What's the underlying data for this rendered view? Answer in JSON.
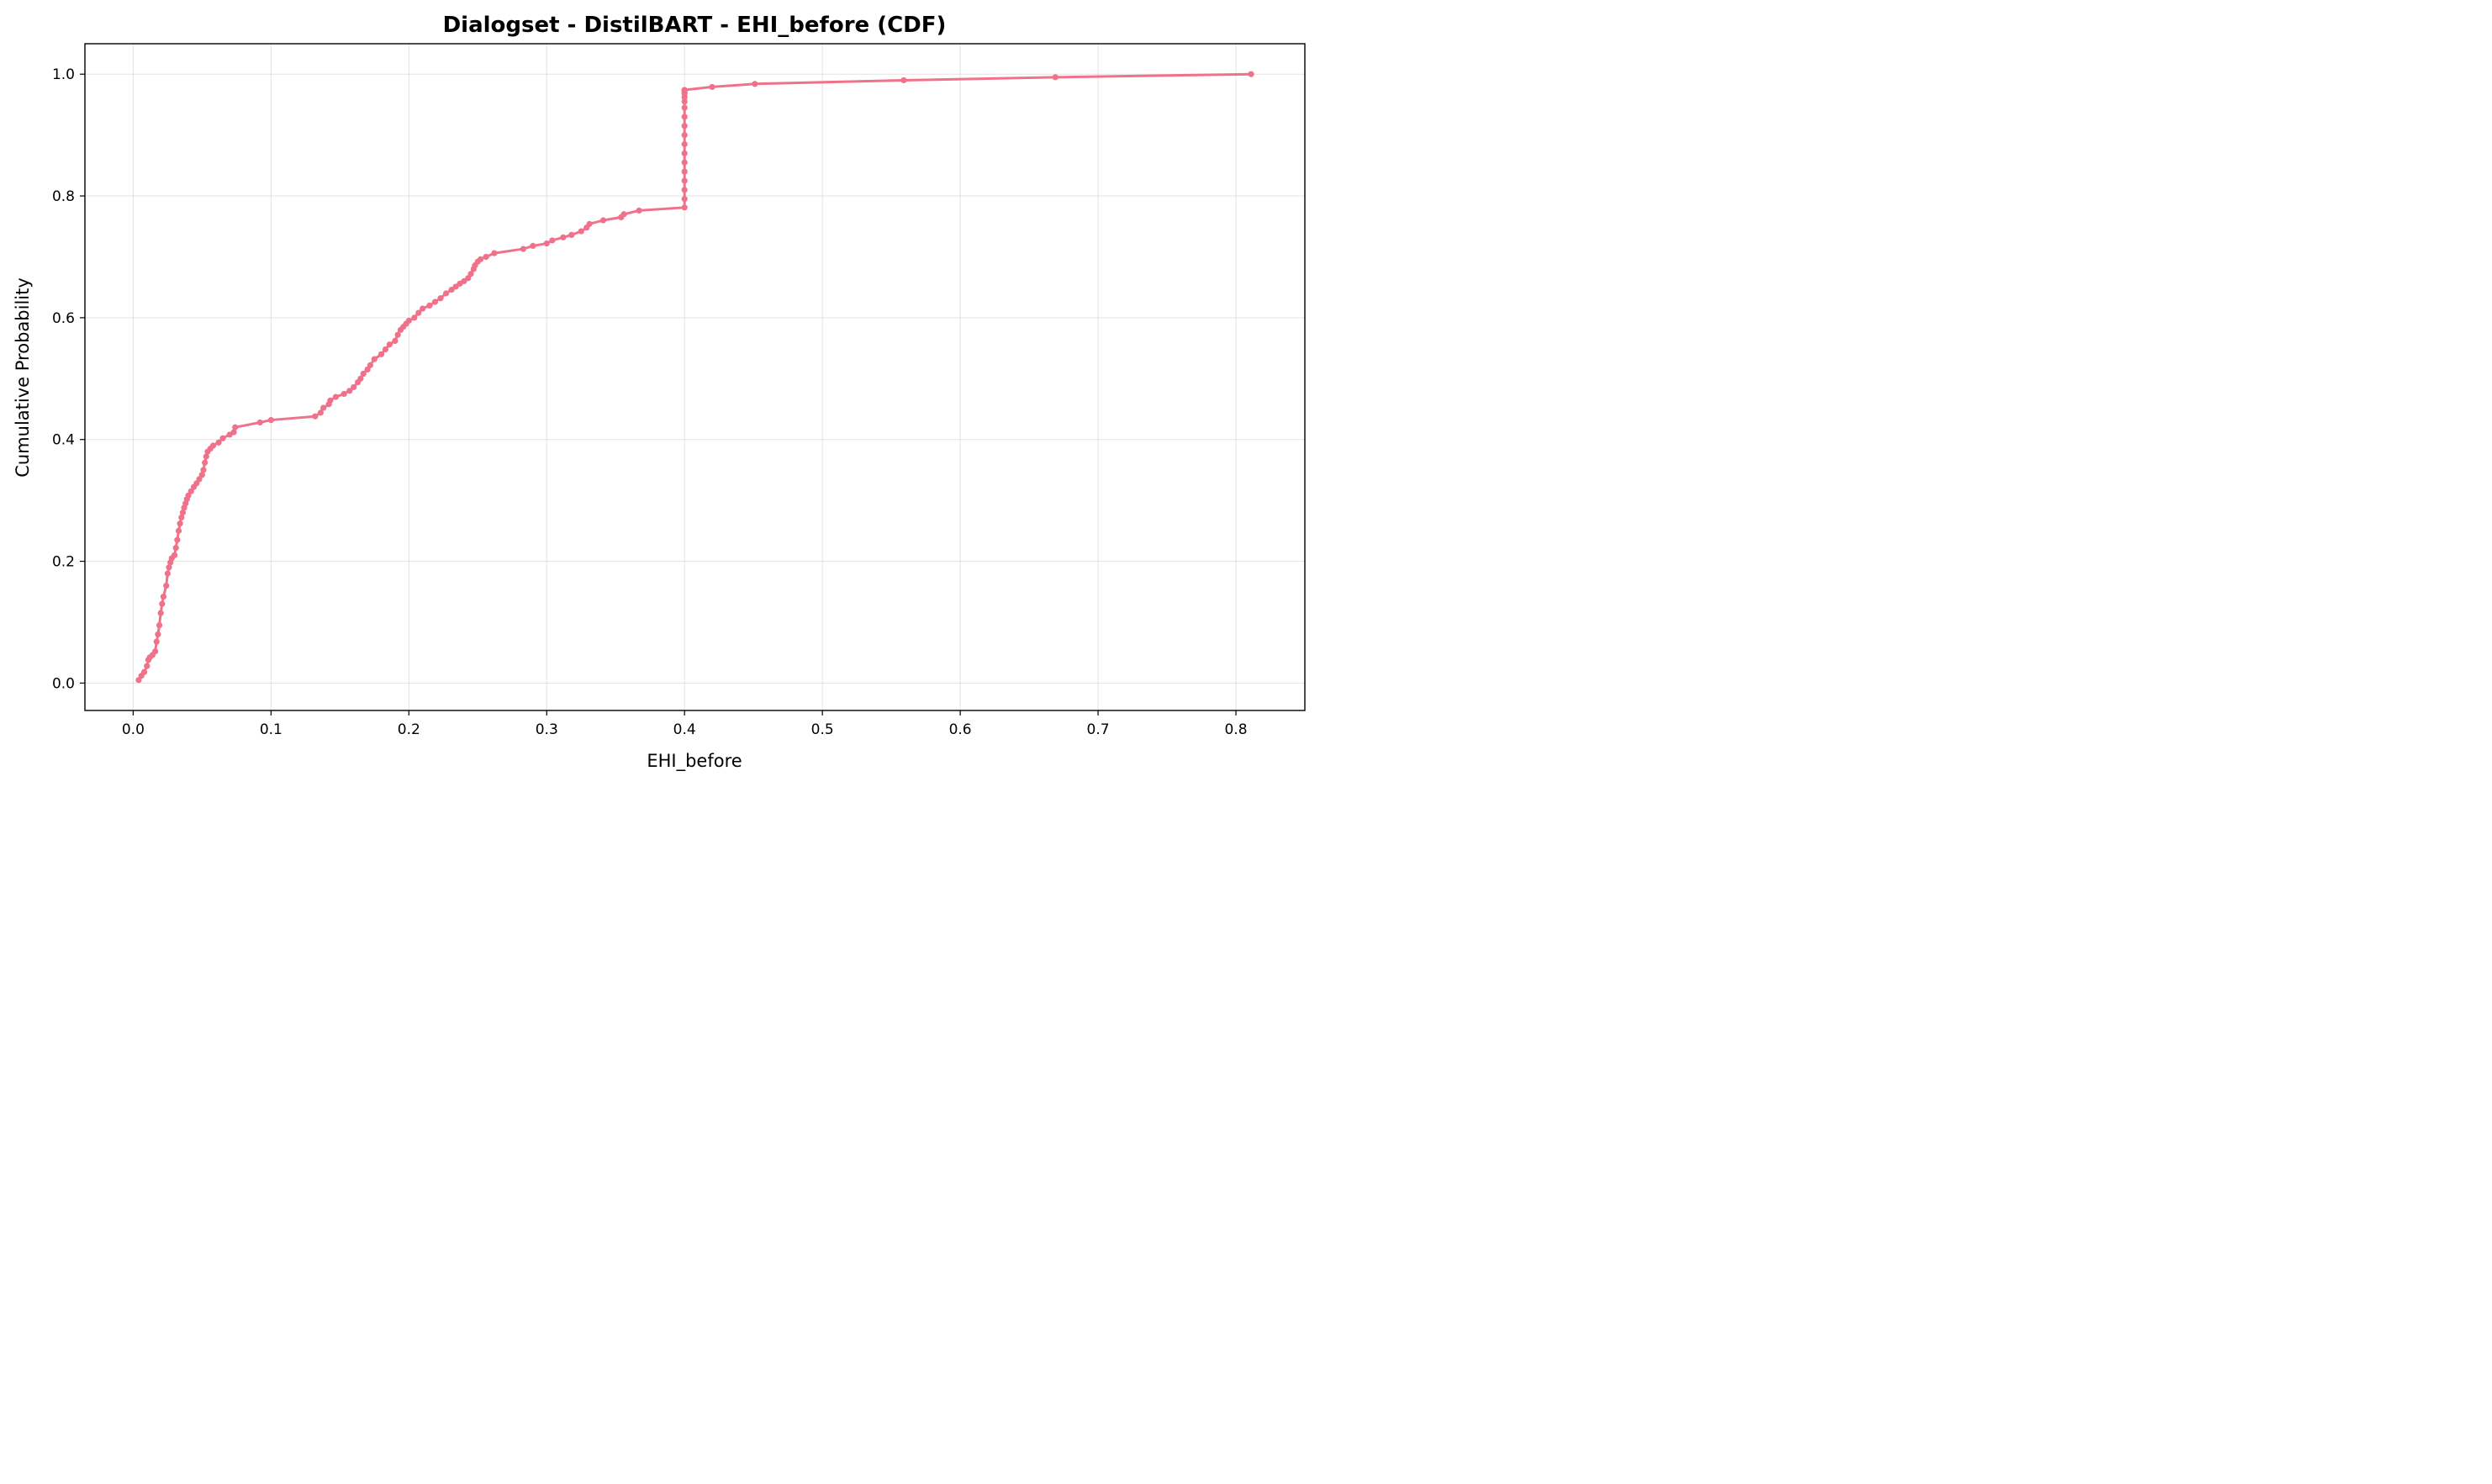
{
  "chart_data": {
    "type": "line",
    "title": "Dialogset - DistilBART - EHI_before (CDF)",
    "xlabel": "EHI_before",
    "ylabel": "Cumulative Probability",
    "xlim": [
      -0.035,
      0.85
    ],
    "ylim": [
      -0.045,
      1.05
    ],
    "xticks": [
      0.0,
      0.1,
      0.2,
      0.3,
      0.4,
      0.5,
      0.6,
      0.7,
      0.8
    ],
    "xtick_labels": [
      "0.0",
      "0.1",
      "0.2",
      "0.3",
      "0.4",
      "0.5",
      "0.6",
      "0.7",
      "0.8"
    ],
    "yticks": [
      0.0,
      0.2,
      0.4,
      0.6,
      0.8,
      1.0
    ],
    "ytick_labels": [
      "0.0",
      "0.2",
      "0.4",
      "0.6",
      "0.8",
      "1.0"
    ],
    "grid": true,
    "color": "#f0728a",
    "series": [
      {
        "name": "",
        "x": [
          0.004,
          0.006,
          0.008,
          0.01,
          0.011,
          0.012,
          0.014,
          0.016,
          0.017,
          0.018,
          0.019,
          0.02,
          0.021,
          0.022,
          0.024,
          0.025,
          0.026,
          0.027,
          0.028,
          0.03,
          0.031,
          0.032,
          0.033,
          0.034,
          0.035,
          0.036,
          0.037,
          0.038,
          0.039,
          0.04,
          0.042,
          0.044,
          0.046,
          0.048,
          0.05,
          0.051,
          0.052,
          0.053,
          0.054,
          0.056,
          0.058,
          0.062,
          0.065,
          0.07,
          0.073,
          0.074,
          0.092,
          0.1,
          0.132,
          0.136,
          0.138,
          0.142,
          0.143,
          0.147,
          0.153,
          0.157,
          0.16,
          0.163,
          0.165,
          0.167,
          0.17,
          0.172,
          0.175,
          0.18,
          0.183,
          0.186,
          0.19,
          0.192,
          0.194,
          0.196,
          0.198,
          0.2,
          0.204,
          0.207,
          0.21,
          0.215,
          0.219,
          0.223,
          0.227,
          0.231,
          0.234,
          0.237,
          0.24,
          0.243,
          0.245,
          0.247,
          0.248,
          0.25,
          0.252,
          0.256,
          0.262,
          0.283,
          0.29,
          0.3,
          0.304,
          0.312,
          0.318,
          0.325,
          0.329,
          0.331,
          0.341,
          0.354,
          0.356,
          0.367,
          0.4,
          0.4,
          0.4,
          0.4,
          0.4,
          0.4,
          0.4,
          0.4,
          0.4,
          0.4,
          0.4,
          0.4,
          0.4,
          0.4,
          0.4,
          0.4,
          0.4,
          0.4,
          0.4,
          0.4,
          0.42,
          0.451,
          0.559,
          0.669,
          0.811
        ],
        "y": [
          0.005,
          0.012,
          0.018,
          0.028,
          0.038,
          0.042,
          0.046,
          0.052,
          0.068,
          0.08,
          0.095,
          0.115,
          0.13,
          0.142,
          0.16,
          0.18,
          0.19,
          0.198,
          0.205,
          0.21,
          0.222,
          0.235,
          0.25,
          0.262,
          0.272,
          0.28,
          0.288,
          0.295,
          0.302,
          0.308,
          0.315,
          0.322,
          0.328,
          0.335,
          0.342,
          0.35,
          0.362,
          0.372,
          0.38,
          0.385,
          0.39,
          0.395,
          0.402,
          0.408,
          0.412,
          0.42,
          0.428,
          0.432,
          0.438,
          0.444,
          0.452,
          0.458,
          0.464,
          0.47,
          0.475,
          0.48,
          0.486,
          0.494,
          0.5,
          0.508,
          0.515,
          0.522,
          0.532,
          0.54,
          0.548,
          0.556,
          0.562,
          0.572,
          0.58,
          0.585,
          0.59,
          0.595,
          0.6,
          0.608,
          0.615,
          0.62,
          0.626,
          0.632,
          0.64,
          0.646,
          0.651,
          0.656,
          0.66,
          0.665,
          0.672,
          0.68,
          0.686,
          0.692,
          0.696,
          0.7,
          0.706,
          0.713,
          0.718,
          0.722,
          0.727,
          0.732,
          0.736,
          0.742,
          0.748,
          0.754,
          0.76,
          0.765,
          0.77,
          0.776,
          0.781,
          0.795,
          0.81,
          0.825,
          0.84,
          0.855,
          0.87,
          0.885,
          0.9,
          0.915,
          0.93,
          0.945,
          0.955,
          0.962,
          0.968,
          0.97,
          0.972,
          0.974,
          0.974,
          0.974,
          0.979,
          0.984,
          0.99,
          0.995,
          1.0
        ]
      }
    ]
  }
}
